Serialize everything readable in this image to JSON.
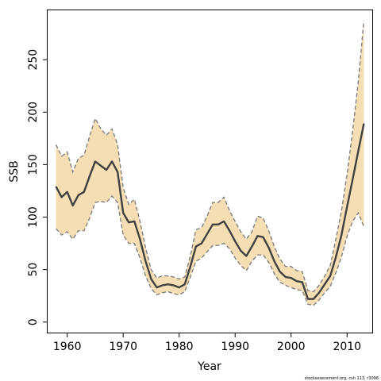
{
  "chart_data": {
    "type": "line",
    "xlabel": "Year",
    "ylabel": "SSB",
    "xlim": [
      1956.5,
      2014.5
    ],
    "ylim": [
      -10,
      297
    ],
    "xticks": [
      1960,
      1970,
      1980,
      1990,
      2000,
      2010
    ],
    "yticks": [
      0,
      50,
      100,
      150,
      200,
      250
    ],
    "grid": false,
    "footnote": "stockassessment.org, csh 113, r3096",
    "colors": {
      "band": "#f5deb3",
      "band_edge": "#808080",
      "line": "#404040"
    },
    "x": [
      1958,
      1959,
      1960,
      1961,
      1962,
      1963,
      1964,
      1965,
      1966,
      1967,
      1968,
      1969,
      1970,
      1971,
      1972,
      1973,
      1974,
      1975,
      1976,
      1977,
      1978,
      1979,
      1980,
      1981,
      1982,
      1983,
      1984,
      1985,
      1986,
      1987,
      1988,
      1989,
      1990,
      1991,
      1992,
      1993,
      1994,
      1995,
      1996,
      1997,
      1998,
      1999,
      2000,
      2001,
      2002,
      2003,
      2004,
      2005,
      2006,
      2007,
      2008,
      2009,
      2010,
      2011,
      2012,
      2013
    ],
    "series": [
      {
        "values": [
          129,
          119,
          124,
          111,
          121,
          124,
          139,
          153,
          149,
          145,
          153,
          143,
          104,
          95,
          96,
          79,
          58,
          41,
          33,
          35,
          36,
          35,
          33,
          36,
          53,
          72,
          75,
          84,
          93,
          93,
          96,
          87,
          77,
          68,
          63,
          72,
          82,
          81,
          71,
          58,
          48,
          43,
          42,
          39,
          38,
          22,
          22,
          28,
          36,
          44,
          62,
          83,
          110,
          136,
          163,
          189
        ]
      }
    ],
    "band_upper": [
      169,
      158,
      162,
      143,
      156,
      159,
      177,
      194,
      184,
      178,
      184,
      169,
      128,
      112,
      117,
      96,
      71,
      50,
      42,
      44,
      44,
      43,
      41,
      43,
      63,
      88,
      90,
      101,
      114,
      114,
      119,
      106,
      96,
      86,
      79,
      86,
      101,
      99,
      87,
      72,
      60,
      53,
      53,
      49,
      48,
      30,
      29,
      35,
      44,
      54,
      79,
      106,
      141,
      182,
      229,
      287
    ],
    "band_lower": [
      89,
      83,
      86,
      79,
      87,
      87,
      99,
      114,
      115,
      114,
      120,
      114,
      83,
      75,
      75,
      61,
      44,
      32,
      26,
      28,
      29,
      27,
      26,
      29,
      43,
      58,
      61,
      67,
      73,
      73,
      75,
      70,
      61,
      54,
      49,
      58,
      64,
      64,
      57,
      46,
      38,
      35,
      33,
      31,
      30,
      17,
      16,
      21,
      28,
      34,
      47,
      62,
      82,
      96,
      104,
      91
    ]
  }
}
